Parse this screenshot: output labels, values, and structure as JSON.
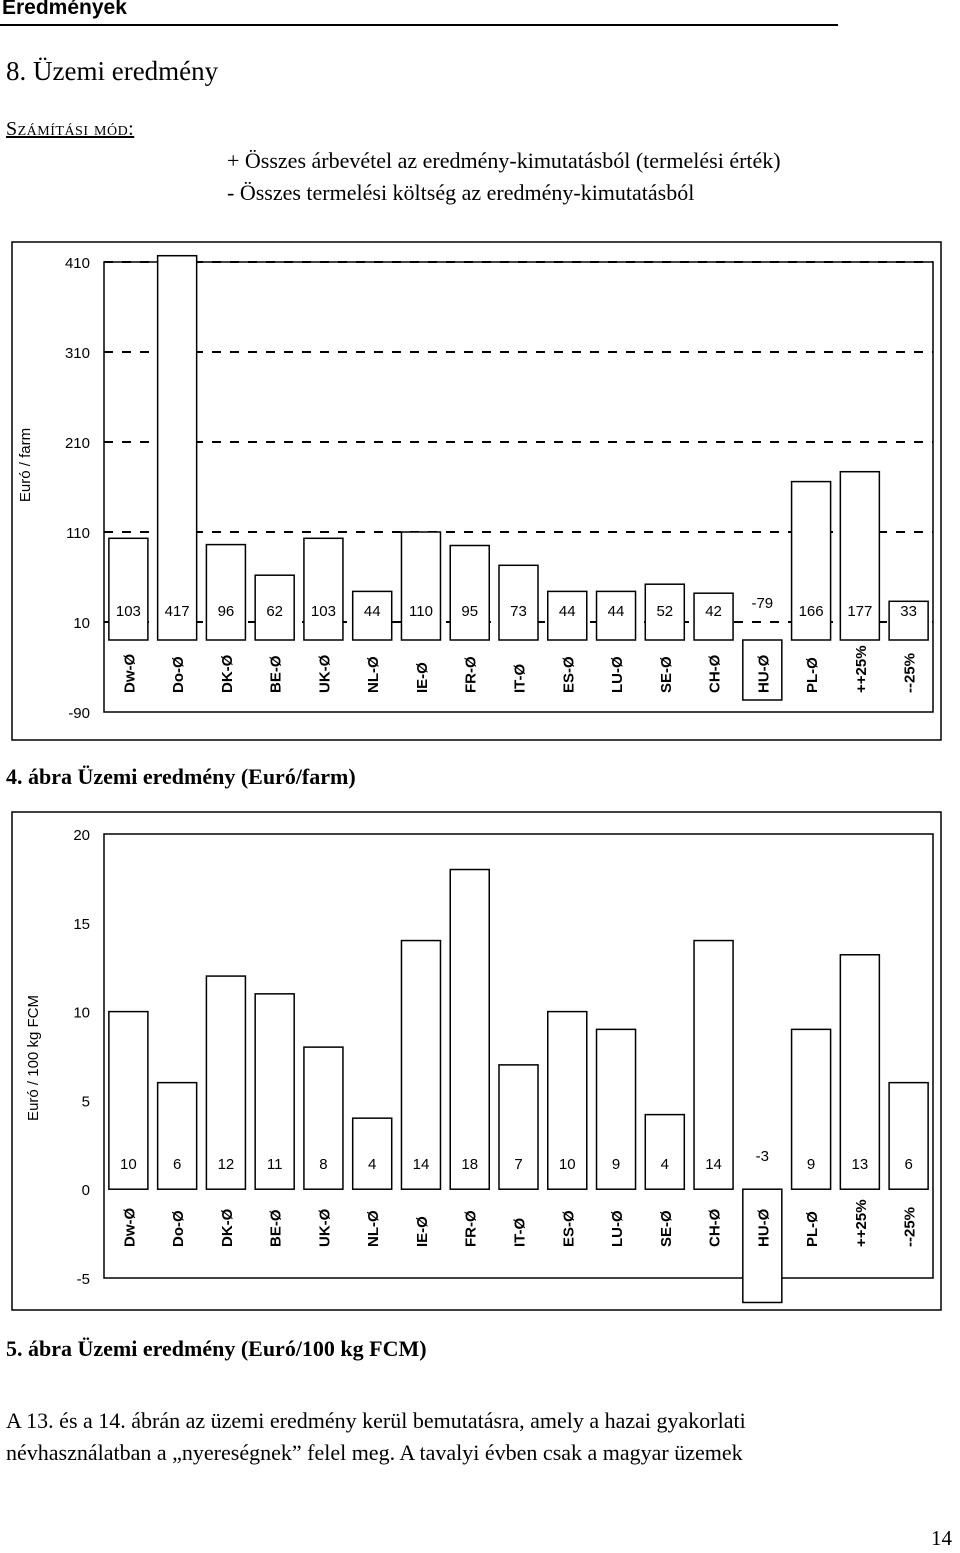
{
  "header": {
    "title": "Eredmények"
  },
  "section_title": "8. Üzemi eredmény",
  "method": {
    "label": "Számítási mód:",
    "line1": "+ Összes árbevétel az eredmény-kimutatásból (termelési érték)",
    "line2": "- Összes termelési költség az eredmény-kimutatásból"
  },
  "chart_data": [
    {
      "type": "bar",
      "ylabel": "Euró / farm",
      "ylim": [
        -90,
        410
      ],
      "yticks": [
        410,
        310,
        210,
        110,
        10,
        -90
      ],
      "grid": "dashed horizontal",
      "categories": [
        "Dw-Ø",
        "Do-Ø",
        "DK-Ø",
        "BE-Ø",
        "UK-Ø",
        "NL-Ø",
        "IE-Ø",
        "FR-Ø",
        "IT-Ø",
        "ES-Ø",
        "LU-Ø",
        "SE-Ø",
        "CH-Ø",
        "HU-Ø",
        "PL-Ø",
        "++25%",
        "--25%"
      ],
      "values": [
        103,
        417,
        96,
        62,
        103,
        44,
        110,
        95,
        73,
        44,
        44,
        52,
        42,
        -79,
        166,
        177,
        33
      ],
      "labels": [
        "103",
        "417",
        "96",
        "62",
        "103",
        "44",
        "110",
        "95",
        "73",
        "44",
        "44",
        "52",
        "42",
        "-79",
        "166",
        "177",
        "33"
      ]
    },
    {
      "type": "bar",
      "ylabel": "Euró / 100 kg FCM",
      "ylim": [
        -5,
        20
      ],
      "yticks": [
        20,
        15,
        10,
        5,
        0,
        -5
      ],
      "grid": "none",
      "categories": [
        "Dw-Ø",
        "Do-Ø",
        "DK-Ø",
        "BE-Ø",
        "UK-Ø",
        "NL-Ø",
        "IE-Ø",
        "FR-Ø",
        "IT-Ø",
        "ES-Ø",
        "LU-Ø",
        "SE-Ø",
        "CH-Ø",
        "HU-Ø",
        "PL-Ø",
        "++25%",
        "--25%"
      ],
      "values": [
        10,
        6,
        12,
        11,
        8,
        4,
        14,
        18,
        7,
        10,
        9,
        4.2,
        14,
        -3,
        9,
        13.2,
        6
      ],
      "labels": [
        "10",
        "6",
        "12",
        "11",
        "8",
        "4",
        "14",
        "18",
        "7",
        "10",
        "9",
        "4",
        "14",
        "-3",
        "9",
        "13",
        "6"
      ]
    }
  ],
  "figure_captions": [
    "4. ábra Üzemi eredmény (Euró/farm)",
    "5. ábra Üzemi eredmény (Euró/100 kg FCM)"
  ],
  "paragraph": {
    "line1": "A 13. és a 14. ábrán az üzemi eredmény kerül bemutatásra, amely a hazai gyakorlati",
    "line2": "névhasználatban a „nyereségnek” felel meg. A tavalyi évben csak a magyar üzemek"
  },
  "page_number": "14"
}
